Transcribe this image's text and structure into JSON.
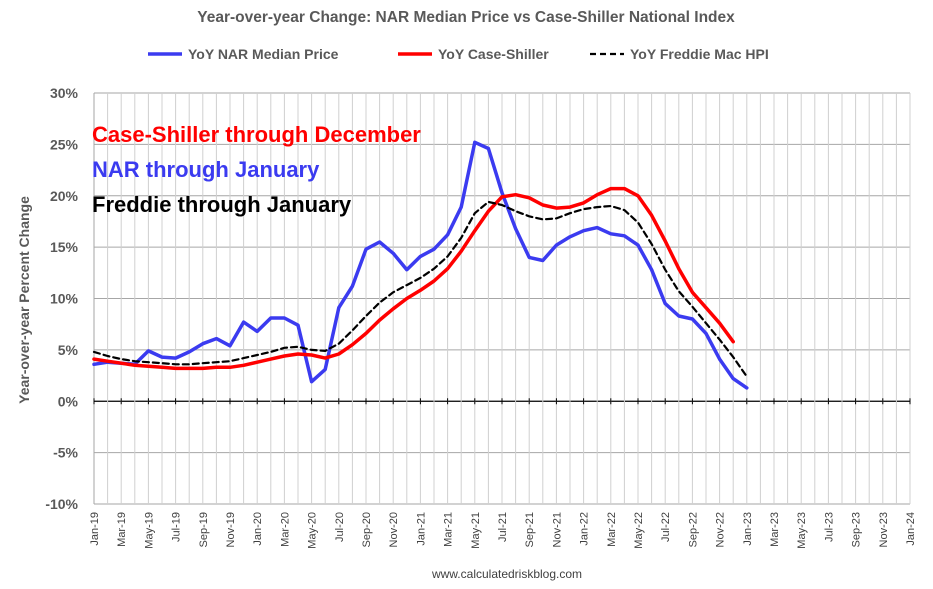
{
  "chart_data": {
    "type": "line",
    "title": "Year-over-year Change: NAR Median Price vs Case-Shiller National Index",
    "ylabel": "Year-over-year Percent Change",
    "xlabel": "",
    "source": "www.calculatedriskblog.com",
    "ylim": [
      -10,
      30
    ],
    "yticks": [
      -10,
      -5,
      0,
      5,
      10,
      15,
      20,
      25,
      30
    ],
    "ytick_labels": [
      "-10%",
      "-5%",
      "0%",
      "5%",
      "10%",
      "15%",
      "20%",
      "25%",
      "30%"
    ],
    "x_start": "2019-01",
    "x_end": "2024-01",
    "xtick_labels": [
      "Jan-19",
      "Mar-19",
      "May-19",
      "Jul-19",
      "Sep-19",
      "Nov-19",
      "Jan-20",
      "Mar-20",
      "May-20",
      "Jul-20",
      "Sep-20",
      "Nov-20",
      "Jan-21",
      "Mar-21",
      "May-21",
      "Jul-21",
      "Sep-21",
      "Nov-21",
      "Jan-22",
      "Mar-22",
      "May-22",
      "Jul-22",
      "Sep-22",
      "Nov-22",
      "Jan-23",
      "Mar-23",
      "May-23",
      "Jul-23",
      "Sep-23",
      "Nov-23",
      "Jan-24"
    ],
    "grid": true,
    "legend": "top",
    "annotations": [
      {
        "text": "Case-Shiller through December",
        "color": "#ff0000"
      },
      {
        "text": "NAR through January",
        "color": "#3b3bf0"
      },
      {
        "text": "Freddie through January",
        "color": "#000000"
      }
    ],
    "series": [
      {
        "name": "YoY NAR Median Price",
        "color": "#3b3bf0",
        "dash": "solid",
        "x_start": "2019-01",
        "values": [
          3.6,
          3.8,
          3.7,
          3.6,
          4.9,
          4.3,
          4.2,
          4.8,
          5.6,
          6.1,
          5.4,
          7.7,
          6.8,
          8.1,
          8.1,
          7.4,
          1.9,
          3.1,
          9.1,
          11.2,
          14.8,
          15.5,
          14.4,
          12.8,
          14.1,
          14.8,
          16.2,
          18.9,
          25.2,
          24.6,
          20.3,
          16.8,
          14.0,
          13.7,
          15.2,
          16.0,
          16.6,
          16.9,
          16.3,
          16.1,
          15.2,
          12.8,
          9.5,
          8.3,
          8.0,
          6.6,
          4.1,
          2.2,
          1.3
        ]
      },
      {
        "name": "YoY Case-Shiller",
        "color": "#ff0000",
        "dash": "solid",
        "x_start": "2019-01",
        "values": [
          4.1,
          3.9,
          3.7,
          3.5,
          3.4,
          3.3,
          3.2,
          3.2,
          3.2,
          3.3,
          3.3,
          3.5,
          3.8,
          4.1,
          4.4,
          4.6,
          4.5,
          4.2,
          4.6,
          5.5,
          6.6,
          7.9,
          9.0,
          10.0,
          10.8,
          11.7,
          12.9,
          14.6,
          16.6,
          18.5,
          19.9,
          20.1,
          19.8,
          19.1,
          18.8,
          18.9,
          19.3,
          20.1,
          20.7,
          20.7,
          20.0,
          18.1,
          15.6,
          12.9,
          10.6,
          9.1,
          7.6,
          5.8
        ]
      },
      {
        "name": "YoY Freddie Mac HPI",
        "color": "#000000",
        "dash": "dashed",
        "x_start": "2019-01",
        "values": [
          4.8,
          4.4,
          4.1,
          3.9,
          3.8,
          3.7,
          3.6,
          3.6,
          3.7,
          3.8,
          3.9,
          4.2,
          4.5,
          4.8,
          5.2,
          5.3,
          5.0,
          4.9,
          5.6,
          6.9,
          8.3,
          9.6,
          10.6,
          11.3,
          12.0,
          12.9,
          14.1,
          15.9,
          18.3,
          19.4,
          19.1,
          18.5,
          18.0,
          17.7,
          17.8,
          18.3,
          18.7,
          18.9,
          19.0,
          18.6,
          17.4,
          15.3,
          12.8,
          10.7,
          9.2,
          7.6,
          6.0,
          4.3,
          2.4
        ]
      }
    ]
  }
}
